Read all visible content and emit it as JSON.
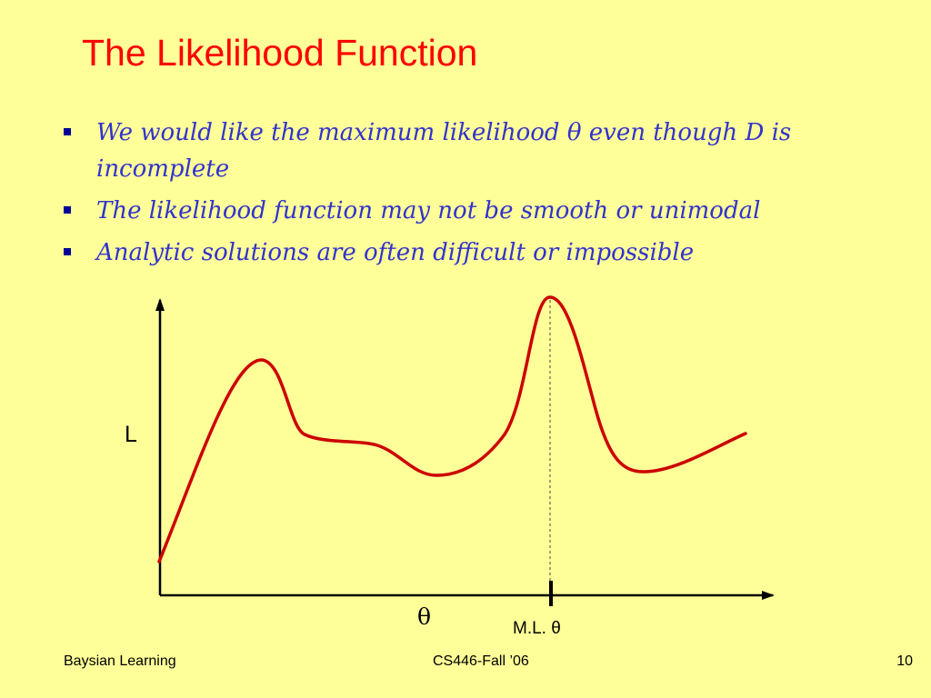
{
  "slide": {
    "title": "The Likelihood Function",
    "bullets": [
      "We would like the maximum likelihood θ even though D is incomplete",
      "The likelihood function may not be smooth or unimodal",
      "Analytic solutions are often difficult or impossible"
    ]
  },
  "diagram": {
    "y_axis_label": "L",
    "x_axis_label": "θ",
    "ml_label": "M.L. θ"
  },
  "footer": {
    "left": "Baysian Learning",
    "center": "CS446-Fall ’06",
    "page_number": "10"
  },
  "colors": {
    "background": "#ffff99",
    "title": "#ff0000",
    "bullet_text": "#3333cc",
    "bullet_marker": "#000099",
    "curve": "#cc0000",
    "axis": "#000000"
  }
}
